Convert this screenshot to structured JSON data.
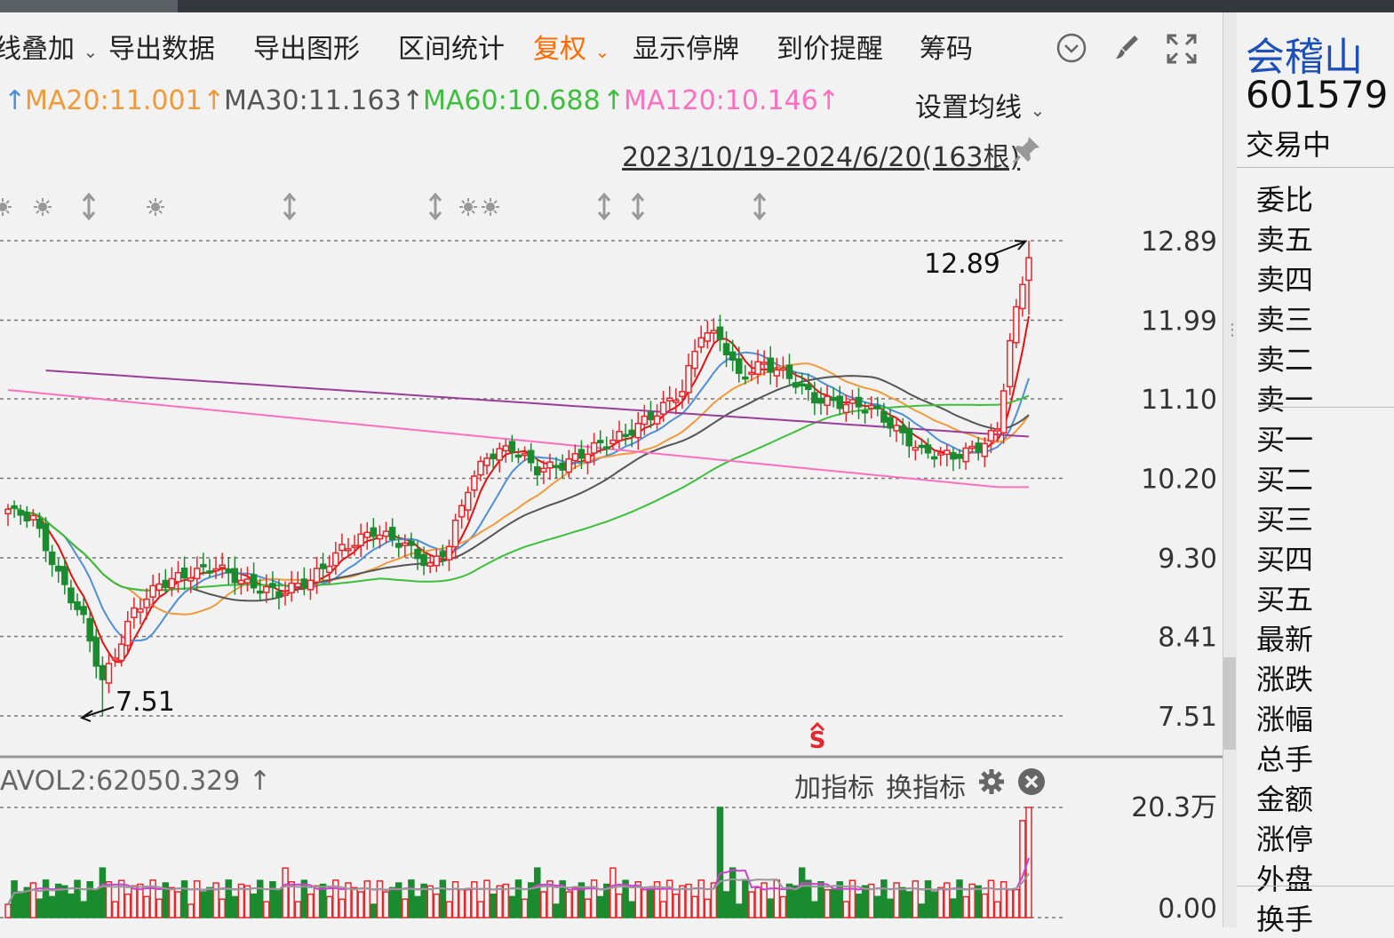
{
  "toolbar": {
    "overlay": "线叠加",
    "export_data": "导出数据",
    "export_chart": "导出图形",
    "range_stats": "区间统计",
    "adjust": "复权",
    "show_suspended": "显示停牌",
    "price_alert": "到价提醒",
    "chips": "筹码"
  },
  "ma_legend": {
    "ma10_arrow": "↑",
    "ma20": "MA20:11.001",
    "ma20_arrow": "↑",
    "ma30": "MA30:11.163",
    "ma30_arrow": "↑",
    "ma60": "MA60:10.688",
    "ma60_arrow": "↑",
    "ma120": "MA120:10.146",
    "ma120_arrow": "↑",
    "settings": "设置均线"
  },
  "date_range": "2023/10/19-2024/6/20(163根)",
  "volume_header": {
    "label": "AVOL2:62050.329",
    "arrow": "↑",
    "add_indicator": "加指标",
    "change_indicator": "换指标"
  },
  "stock": {
    "name": "会稽山",
    "code": "601579",
    "status": "交易中"
  },
  "quote_rows": [
    "委比",
    "卖五",
    "卖四",
    "卖三",
    "卖二",
    "卖一",
    "买一",
    "买二",
    "买三",
    "买四",
    "买五",
    "最新",
    "涨跌",
    "涨幅",
    "总手",
    "金额",
    "涨停",
    "外盘",
    "换手"
  ],
  "colors": {
    "up": "#e8262b",
    "down": "#1a8c2f",
    "ma5": "#e8100f",
    "ma10": "#4e8fd8",
    "ma20": "#f09a3a",
    "ma30": "#555555",
    "ma60": "#3cc03c",
    "ma120": "#ff6fc0",
    "ma250": "#9a3d9a"
  },
  "chart_data": {
    "type": "candlestick",
    "y_ticks": [
      "12.89",
      "11.99",
      "11.10",
      "10.20",
      "9.30",
      "8.41",
      "7.51"
    ],
    "ylim": [
      7.51,
      12.89
    ],
    "annotations": [
      {
        "text": "12.89",
        "kind": "high"
      },
      {
        "text": "7.51",
        "kind": "low"
      }
    ],
    "ma_values": {
      "MA20": 11.001,
      "MA30": 11.163,
      "MA60": 10.688,
      "MA120": 10.146
    },
    "volume_ticks": [
      "20.3万",
      "0.00"
    ],
    "date_range": "2023/10/19-2024/6/20",
    "bar_count": 163
  }
}
